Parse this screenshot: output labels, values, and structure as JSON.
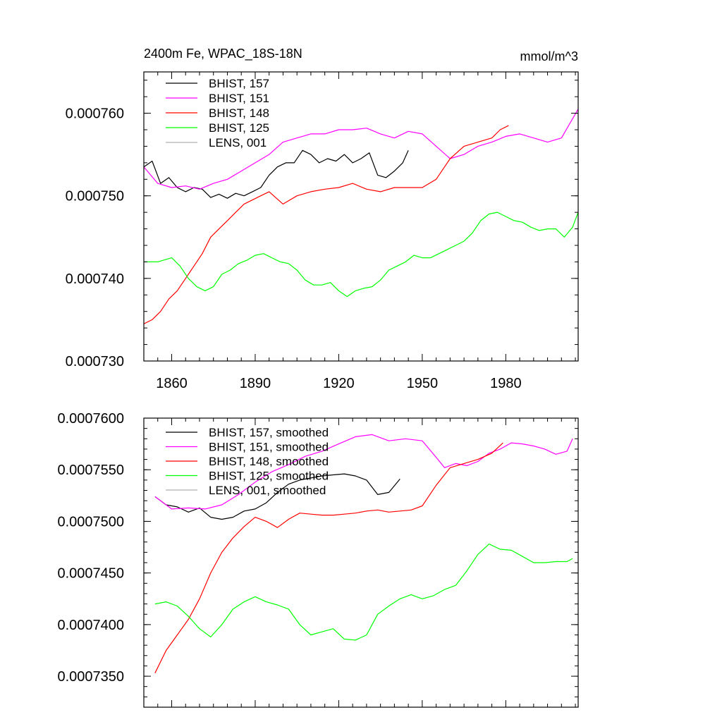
{
  "chart_data": [
    {
      "type": "line",
      "title": "2400m Fe, WPAC_18S-18N",
      "units": "mmol/m^3",
      "xlim": [
        1850,
        2006
      ],
      "ylim": [
        0.00073,
        0.000765
      ],
      "x_ticks": [
        1860,
        1890,
        1920,
        1950,
        1980
      ],
      "x_tick_labels": [
        "1860",
        "1890",
        "1920",
        "1950",
        "1980"
      ],
      "y_ticks": [
        0.00073,
        0.00074,
        0.00075,
        0.00076
      ],
      "y_tick_labels": [
        "0.000730",
        "0.000740",
        "0.000750",
        "0.000760"
      ],
      "grid": false,
      "legend_position": "top-left",
      "series": [
        {
          "name": "BHIST, 157",
          "color": "#000000",
          "x": [
            1850,
            1853,
            1856,
            1859,
            1862,
            1865,
            1868,
            1871,
            1874,
            1877,
            1880,
            1883,
            1886,
            1889,
            1892,
            1895,
            1898,
            1901,
            1904,
            1907,
            1910,
            1913,
            1916,
            1919,
            1922,
            1925,
            1928,
            1931,
            1934,
            1937,
            1940,
            1943,
            1945
          ],
          "y": [
            0.0007535,
            0.0007542,
            0.0007515,
            0.0007522,
            0.000751,
            0.0007505,
            0.000751,
            0.0007508,
            0.0007498,
            0.0007502,
            0.0007497,
            0.0007503,
            0.00075,
            0.0007505,
            0.000751,
            0.0007525,
            0.0007535,
            0.000754,
            0.000754,
            0.0007555,
            0.000755,
            0.000754,
            0.0007545,
            0.0007542,
            0.000755,
            0.000754,
            0.0007545,
            0.0007552,
            0.0007525,
            0.0007522,
            0.000753,
            0.000754,
            0.0007555
          ]
        },
        {
          "name": "BHIST, 151",
          "color": "#ff00ff",
          "x": [
            1850,
            1855,
            1860,
            1865,
            1870,
            1875,
            1880,
            1885,
            1890,
            1895,
            1900,
            1905,
            1910,
            1915,
            1920,
            1925,
            1930,
            1935,
            1940,
            1945,
            1950,
            1955,
            1960,
            1965,
            1970,
            1975,
            1980,
            1985,
            1990,
            1995,
            2000,
            2006
          ],
          "y": [
            0.0007535,
            0.0007515,
            0.000751,
            0.0007512,
            0.0007508,
            0.0007515,
            0.000752,
            0.000753,
            0.000754,
            0.000755,
            0.0007565,
            0.000757,
            0.0007575,
            0.0007575,
            0.000758,
            0.000758,
            0.0007582,
            0.0007575,
            0.000757,
            0.0007578,
            0.0007575,
            0.000756,
            0.0007545,
            0.000755,
            0.000756,
            0.0007565,
            0.0007572,
            0.0007575,
            0.000757,
            0.0007565,
            0.000757,
            0.0007605
          ]
        },
        {
          "name": "BHIST, 148",
          "color": "#ff0000",
          "x": [
            1850,
            1853,
            1856,
            1859,
            1862,
            1865,
            1868,
            1871,
            1874,
            1877,
            1880,
            1883,
            1886,
            1889,
            1892,
            1895,
            1900,
            1905,
            1910,
            1915,
            1920,
            1925,
            1930,
            1935,
            1940,
            1945,
            1950,
            1955,
            1960,
            1965,
            1970,
            1975,
            1978,
            1981
          ],
          "y": [
            0.0007345,
            0.000735,
            0.000736,
            0.0007375,
            0.0007385,
            0.00074,
            0.0007415,
            0.000743,
            0.000745,
            0.000746,
            0.000747,
            0.000748,
            0.000749,
            0.0007495,
            0.00075,
            0.0007505,
            0.000749,
            0.00075,
            0.0007505,
            0.0007508,
            0.000751,
            0.0007515,
            0.0007508,
            0.0007505,
            0.000751,
            0.000751,
            0.000751,
            0.000752,
            0.0007545,
            0.000756,
            0.0007565,
            0.000757,
            0.000758,
            0.0007585
          ]
        },
        {
          "name": "BHIST, 125",
          "color": "#00ff00",
          "x": [
            1850,
            1855,
            1860,
            1863,
            1866,
            1869,
            1872,
            1875,
            1878,
            1881,
            1884,
            1887,
            1890,
            1893,
            1896,
            1899,
            1902,
            1905,
            1908,
            1911,
            1914,
            1917,
            1920,
            1923,
            1926,
            1929,
            1932,
            1935,
            1938,
            1941,
            1944,
            1947,
            1950,
            1953,
            1956,
            1959,
            1962,
            1965,
            1968,
            1971,
            1974,
            1977,
            1980,
            1983,
            1986,
            1989,
            1992,
            1995,
            1998,
            2001,
            2004,
            2006
          ],
          "y": [
            0.000742,
            0.000742,
            0.0007425,
            0.0007415,
            0.00074,
            0.000739,
            0.0007385,
            0.000739,
            0.0007405,
            0.000741,
            0.0007418,
            0.0007422,
            0.0007428,
            0.000743,
            0.0007425,
            0.000742,
            0.0007418,
            0.000741,
            0.0007398,
            0.0007392,
            0.0007392,
            0.0007395,
            0.0007385,
            0.0007378,
            0.0007385,
            0.0007388,
            0.000739,
            0.0007398,
            0.000741,
            0.0007415,
            0.000742,
            0.0007428,
            0.0007425,
            0.0007425,
            0.000743,
            0.0007435,
            0.000744,
            0.0007445,
            0.0007455,
            0.000747,
            0.0007478,
            0.000748,
            0.0007475,
            0.000747,
            0.0007468,
            0.0007462,
            0.0007458,
            0.000746,
            0.000746,
            0.000745,
            0.0007462,
            0.000748
          ]
        },
        {
          "name": "LENS, 001",
          "color": "#b0b0b0",
          "x": [],
          "y": []
        }
      ]
    },
    {
      "type": "line",
      "title": "",
      "xlim": [
        1850,
        2006
      ],
      "ylim": [
        0.000732,
        0.00076
      ],
      "x_ticks": [
        1860,
        1890,
        1920,
        1950,
        1980
      ],
      "y_ticks": [
        0.000735,
        0.00074,
        0.000745,
        0.00075,
        0.000755,
        0.00076
      ],
      "y_tick_labels": [
        "0.0007350",
        "0.0007400",
        "0.0007450",
        "0.0007500",
        "0.0007550",
        "0.0007600"
      ],
      "grid": false,
      "legend_position": "top-left",
      "series": [
        {
          "name": "BHIST, 157, smoothed",
          "color": "#000000",
          "x": [
            1854,
            1858,
            1862,
            1866,
            1870,
            1874,
            1878,
            1882,
            1886,
            1890,
            1894,
            1898,
            1902,
            1906,
            1910,
            1914,
            1918,
            1922,
            1926,
            1930,
            1934,
            1938,
            1942
          ],
          "y": [
            0.0007524,
            0.0007516,
            0.0007514,
            0.0007509,
            0.0007513,
            0.0007504,
            0.0007502,
            0.0007504,
            0.000751,
            0.0007512,
            0.0007518,
            0.0007528,
            0.0007536,
            0.000754,
            0.0007542,
            0.0007544,
            0.0007545,
            0.0007546,
            0.0007544,
            0.000754,
            0.0007526,
            0.0007528,
            0.0007541
          ]
        },
        {
          "name": "BHIST, 151, smoothed",
          "color": "#ff00ff",
          "x": [
            1854,
            1860,
            1866,
            1872,
            1878,
            1884,
            1890,
            1896,
            1902,
            1908,
            1914,
            1920,
            1926,
            1932,
            1938,
            1944,
            1950,
            1955,
            1958,
            1962,
            1966,
            1970,
            1974,
            1978,
            1982,
            1986,
            1990,
            1994,
            1998,
            2002,
            2004
          ],
          "y": [
            0.0007524,
            0.0007512,
            0.0007513,
            0.0007512,
            0.0007516,
            0.0007526,
            0.0007538,
            0.0007548,
            0.0007555,
            0.0007563,
            0.0007568,
            0.0007575,
            0.0007582,
            0.0007584,
            0.0007578,
            0.000758,
            0.0007578,
            0.0007562,
            0.0007552,
            0.0007556,
            0.0007554,
            0.0007558,
            0.0007566,
            0.000757,
            0.0007576,
            0.0007575,
            0.0007573,
            0.000757,
            0.0007565,
            0.0007568,
            0.000758
          ]
        },
        {
          "name": "BHIST, 148, smoothed",
          "color": "#ff0000",
          "x": [
            1854,
            1858,
            1862,
            1866,
            1870,
            1874,
            1878,
            1882,
            1886,
            1890,
            1894,
            1898,
            1902,
            1906,
            1910,
            1914,
            1918,
            1922,
            1926,
            1930,
            1934,
            1938,
            1942,
            1946,
            1950,
            1955,
            1960,
            1965,
            1970,
            1975,
            1979
          ],
          "y": [
            0.0007353,
            0.0007375,
            0.000739,
            0.0007405,
            0.0007425,
            0.000745,
            0.000747,
            0.0007484,
            0.0007495,
            0.0007504,
            0.00075,
            0.0007494,
            0.0007502,
            0.0007508,
            0.0007507,
            0.0007506,
            0.0007506,
            0.0007507,
            0.0007508,
            0.000751,
            0.0007511,
            0.0007509,
            0.000751,
            0.0007511,
            0.0007515,
            0.0007535,
            0.0007552,
            0.0007556,
            0.000756,
            0.0007566,
            0.0007576
          ]
        },
        {
          "name": "BHIST, 125, smoothed",
          "color": "#00ff00",
          "x": [
            1854,
            1858,
            1862,
            1866,
            1870,
            1874,
            1878,
            1882,
            1886,
            1890,
            1894,
            1898,
            1902,
            1906,
            1910,
            1914,
            1918,
            1922,
            1926,
            1930,
            1934,
            1938,
            1942,
            1946,
            1950,
            1954,
            1958,
            1962,
            1966,
            1970,
            1974,
            1978,
            1982,
            1986,
            1990,
            1994,
            1998,
            2002,
            2004
          ],
          "y": [
            0.000742,
            0.0007422,
            0.0007418,
            0.0007408,
            0.0007396,
            0.0007388,
            0.00074,
            0.0007415,
            0.0007422,
            0.0007427,
            0.0007422,
            0.0007419,
            0.0007415,
            0.00074,
            0.000739,
            0.0007393,
            0.0007396,
            0.0007386,
            0.0007385,
            0.000739,
            0.000741,
            0.0007418,
            0.0007425,
            0.0007429,
            0.0007425,
            0.0007428,
            0.0007434,
            0.0007438,
            0.0007452,
            0.0007468,
            0.0007478,
            0.0007473,
            0.0007472,
            0.0007466,
            0.000746,
            0.000746,
            0.0007461,
            0.0007461,
            0.0007464
          ]
        },
        {
          "name": "LENS, 001, smoothed",
          "color": "#b0b0b0",
          "x": [],
          "y": []
        }
      ]
    }
  ]
}
